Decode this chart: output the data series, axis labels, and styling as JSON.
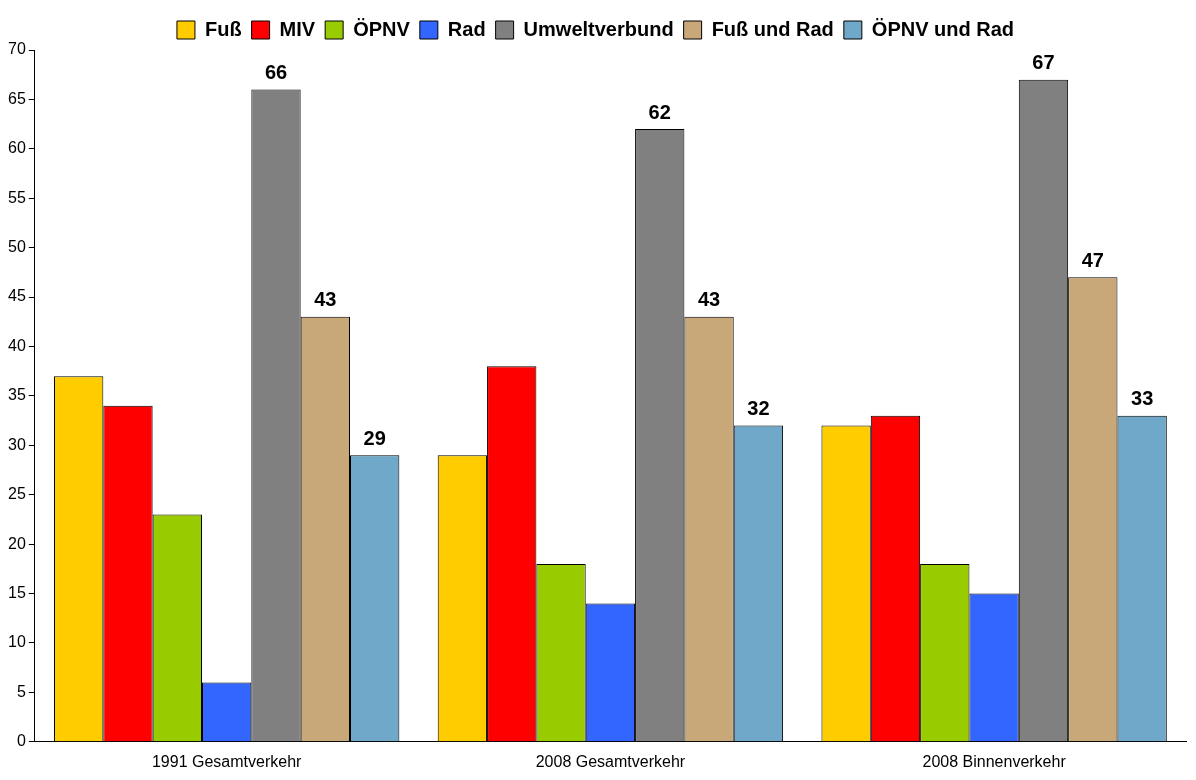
{
  "chart_data": {
    "type": "bar",
    "categories": [
      "1991 Gesamtverkehr",
      "2008 Gesamtverkehr",
      "2008 Binnenverkehr"
    ],
    "series": [
      {
        "name": "Fuß",
        "color": "#ffcc00",
        "values": [
          37,
          29,
          32
        ]
      },
      {
        "name": "MIV",
        "color": "#ff0000",
        "values": [
          34,
          38,
          33
        ]
      },
      {
        "name": "ÖPNV",
        "color": "#99cc00",
        "values": [
          23,
          18,
          18
        ]
      },
      {
        "name": "Rad",
        "color": "#3366ff",
        "values": [
          6,
          14,
          15
        ]
      },
      {
        "name": "Umweltverbund",
        "color": "#808080",
        "values": [
          66,
          62,
          67
        ],
        "value_labels": [
          "66",
          "62",
          "67"
        ]
      },
      {
        "name": "Fuß und Rad",
        "color": "#c8a878",
        "values": [
          43,
          43,
          47
        ],
        "value_labels": [
          "43",
          "43",
          "47"
        ]
      },
      {
        "name": "ÖPNV und Rad",
        "color": "#6fa8c8",
        "values": [
          29,
          32,
          33
        ],
        "value_labels": [
          "29",
          "32",
          "33"
        ]
      }
    ],
    "ylim": [
      0,
      70
    ],
    "yticks": [
      0,
      5,
      10,
      15,
      20,
      25,
      30,
      35,
      40,
      45,
      50,
      55,
      60,
      65,
      70
    ],
    "grid": false,
    "legend": "top"
  }
}
